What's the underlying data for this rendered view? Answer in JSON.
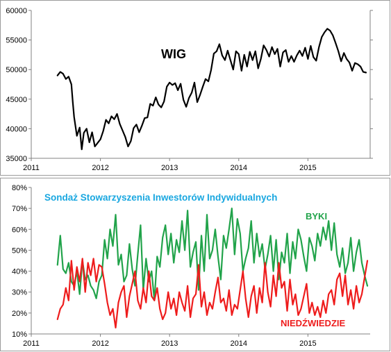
{
  "chart_data": [
    {
      "type": "line",
      "title": "WIG",
      "xlabel": "",
      "ylabel": "",
      "x_ticks": [
        "2011",
        "2012",
        "2013",
        "2014",
        "2015"
      ],
      "x_range": [
        2011.0,
        2015.9
      ],
      "y_ticks": [
        "35000",
        "40000",
        "45000",
        "50000",
        "55000",
        "60000"
      ],
      "ylim": [
        35000,
        60000
      ],
      "grid": false,
      "series": [
        {
          "color": "#000000",
          "x": [
            2011.38,
            2011.42,
            2011.46,
            2011.5,
            2011.54,
            2011.58,
            2011.6,
            2011.62,
            2011.66,
            2011.7,
            2011.73,
            2011.76,
            2011.8,
            2011.84,
            2011.88,
            2011.92,
            2011.96,
            2012.0,
            2012.04,
            2012.08,
            2012.12,
            2012.16,
            2012.2,
            2012.24,
            2012.28,
            2012.32,
            2012.36,
            2012.4,
            2012.44,
            2012.48,
            2012.52,
            2012.56,
            2012.6,
            2012.64,
            2012.68,
            2012.72,
            2012.76,
            2012.8,
            2012.84,
            2012.88,
            2012.92,
            2012.96,
            2013.0,
            2013.04,
            2013.08,
            2013.12,
            2013.16,
            2013.2,
            2013.24,
            2013.28,
            2013.32,
            2013.36,
            2013.4,
            2013.44,
            2013.48,
            2013.52,
            2013.56,
            2013.6,
            2013.64,
            2013.68,
            2013.72,
            2013.76,
            2013.8,
            2013.84,
            2013.88,
            2013.92,
            2013.96,
            2014.0,
            2014.04,
            2014.08,
            2014.12,
            2014.16,
            2014.2,
            2014.24,
            2014.28,
            2014.32,
            2014.36,
            2014.4,
            2014.44,
            2014.48,
            2014.52,
            2014.56,
            2014.6,
            2014.64,
            2014.68,
            2014.72,
            2014.76,
            2014.8,
            2014.84,
            2014.88,
            2014.92,
            2014.96,
            2015.0,
            2015.04,
            2015.08,
            2015.12,
            2015.16,
            2015.2,
            2015.24,
            2015.28,
            2015.32,
            2015.36,
            2015.4,
            2015.44,
            2015.48,
            2015.52,
            2015.56,
            2015.6,
            2015.64,
            2015.68,
            2015.72,
            2015.76,
            2015.8,
            2015.84
          ],
          "values": [
            49000,
            49600,
            49300,
            48400,
            48800,
            47500,
            44500,
            42000,
            38800,
            40200,
            36500,
            39300,
            40000,
            37700,
            39400,
            37000,
            37600,
            38200,
            39600,
            41500,
            40900,
            42100,
            41600,
            42500,
            40800,
            39700,
            38600,
            37000,
            37900,
            40100,
            40700,
            39400,
            40500,
            41800,
            41900,
            44200,
            43900,
            45300,
            44100,
            43600,
            44600,
            47100,
            47800,
            47400,
            47700,
            46500,
            47600,
            44900,
            43700,
            45200,
            46100,
            47800,
            44500,
            45700,
            47100,
            48400,
            48000,
            49900,
            52700,
            53100,
            54300,
            52400,
            51600,
            53200,
            51600,
            50000,
            53100,
            52600,
            49800,
            52500,
            50500,
            53000,
            51600,
            53100,
            50200,
            51800,
            54100,
            53300,
            52200,
            53800,
            52600,
            53500,
            50500,
            52900,
            53300,
            51300,
            52300,
            51300,
            52400,
            53200,
            52300,
            53700,
            51800,
            54000,
            52100,
            51500,
            53800,
            55500,
            56300,
            56900,
            56600,
            55800,
            54500,
            53100,
            51400,
            52800,
            51800,
            51200,
            49800,
            51100,
            50900,
            50500,
            49600,
            49500
          ]
        }
      ]
    },
    {
      "type": "line",
      "title": "Sondaż Stowarzyszenia Inwestorów Indywidualnych",
      "xlabel": "",
      "ylabel": "",
      "x_ticks": [
        "2011",
        "2012",
        "2013",
        "2014",
        "2015"
      ],
      "x_range": [
        2011.0,
        2015.9
      ],
      "y_ticks": [
        "10%",
        "20%",
        "30%",
        "40%",
        "50%",
        "60%",
        "70%",
        "80%"
      ],
      "ylim": [
        10,
        80
      ],
      "grid": false,
      "title_color": "#19a7e0",
      "series": [
        {
          "name": "BYKI",
          "color": "#21a34a",
          "x": [
            2011.38,
            2011.42,
            2011.46,
            2011.5,
            2011.54,
            2011.58,
            2011.62,
            2011.66,
            2011.7,
            2011.74,
            2011.78,
            2011.82,
            2011.86,
            2011.9,
            2011.94,
            2011.98,
            2012.02,
            2012.06,
            2012.1,
            2012.14,
            2012.18,
            2012.22,
            2012.26,
            2012.3,
            2012.34,
            2012.38,
            2012.42,
            2012.46,
            2012.5,
            2012.54,
            2012.58,
            2012.62,
            2012.66,
            2012.7,
            2012.74,
            2012.78,
            2012.82,
            2012.86,
            2012.9,
            2012.94,
            2012.98,
            2013.02,
            2013.06,
            2013.1,
            2013.14,
            2013.18,
            2013.22,
            2013.26,
            2013.3,
            2013.34,
            2013.38,
            2013.42,
            2013.46,
            2013.5,
            2013.54,
            2013.58,
            2013.62,
            2013.66,
            2013.7,
            2013.74,
            2013.78,
            2013.82,
            2013.86,
            2013.9,
            2013.94,
            2013.98,
            2014.02,
            2014.06,
            2014.1,
            2014.14,
            2014.18,
            2014.22,
            2014.26,
            2014.3,
            2014.34,
            2014.38,
            2014.42,
            2014.46,
            2014.5,
            2014.54,
            2014.58,
            2014.62,
            2014.66,
            2014.7,
            2014.74,
            2014.78,
            2014.82,
            2014.86,
            2014.9,
            2014.94,
            2014.98,
            2015.02,
            2015.06,
            2015.1,
            2015.14,
            2015.18,
            2015.22,
            2015.26,
            2015.3,
            2015.34,
            2015.38,
            2015.42,
            2015.46,
            2015.5,
            2015.54,
            2015.58,
            2015.62,
            2015.66,
            2015.7,
            2015.74,
            2015.78,
            2015.82,
            2015.86
          ],
          "values": [
            43,
            57,
            41,
            39,
            44,
            35,
            33,
            40,
            29,
            45,
            36,
            38,
            33,
            31,
            27,
            35,
            38,
            55,
            46,
            60,
            52,
            67,
            43,
            48,
            35,
            38,
            53,
            41,
            33,
            48,
            62,
            31,
            46,
            35,
            40,
            26,
            47,
            42,
            56,
            62,
            48,
            58,
            44,
            55,
            49,
            64,
            50,
            69,
            42,
            49,
            54,
            31,
            57,
            40,
            67,
            46,
            50,
            60,
            47,
            36,
            57,
            51,
            60,
            70,
            48,
            65,
            58,
            40,
            46,
            51,
            64,
            44,
            58,
            47,
            53,
            41,
            48,
            57,
            40,
            55,
            36,
            49,
            44,
            58,
            39,
            54,
            46,
            60,
            55,
            47,
            40,
            56,
            52,
            45,
            58,
            52,
            61,
            55,
            64,
            50,
            63,
            48,
            42,
            51,
            39,
            44,
            56,
            40,
            49,
            55,
            44,
            38,
            33
          ]
        },
        {
          "name": "NIEDŹWIEDZIE",
          "color": "#ee1c1c",
          "x": [
            2011.38,
            2011.42,
            2011.46,
            2011.5,
            2011.54,
            2011.58,
            2011.62,
            2011.66,
            2011.7,
            2011.74,
            2011.78,
            2011.82,
            2011.86,
            2011.9,
            2011.94,
            2011.98,
            2012.02,
            2012.06,
            2012.1,
            2012.14,
            2012.18,
            2012.22,
            2012.26,
            2012.3,
            2012.34,
            2012.38,
            2012.42,
            2012.46,
            2012.5,
            2012.54,
            2012.58,
            2012.62,
            2012.66,
            2012.7,
            2012.74,
            2012.78,
            2012.82,
            2012.86,
            2012.9,
            2012.94,
            2012.98,
            2013.02,
            2013.06,
            2013.1,
            2013.14,
            2013.18,
            2013.22,
            2013.26,
            2013.3,
            2013.34,
            2013.38,
            2013.42,
            2013.46,
            2013.5,
            2013.54,
            2013.58,
            2013.62,
            2013.66,
            2013.7,
            2013.74,
            2013.78,
            2013.82,
            2013.86,
            2013.9,
            2013.94,
            2013.98,
            2014.02,
            2014.06,
            2014.1,
            2014.14,
            2014.18,
            2014.22,
            2014.26,
            2014.3,
            2014.34,
            2014.38,
            2014.42,
            2014.46,
            2014.5,
            2014.54,
            2014.58,
            2014.62,
            2014.66,
            2014.7,
            2014.74,
            2014.78,
            2014.82,
            2014.86,
            2014.9,
            2014.94,
            2014.98,
            2015.02,
            2015.06,
            2015.1,
            2015.14,
            2015.18,
            2015.22,
            2015.26,
            2015.3,
            2015.34,
            2015.38,
            2015.42,
            2015.46,
            2015.5,
            2015.54,
            2015.58,
            2015.62,
            2015.66,
            2015.7,
            2015.74,
            2015.78,
            2015.82,
            2015.86
          ],
          "values": [
            17,
            22,
            24,
            32,
            26,
            45,
            31,
            42,
            35,
            46,
            30,
            44,
            38,
            46,
            35,
            43,
            42,
            34,
            25,
            19,
            22,
            13,
            25,
            30,
            33,
            18,
            28,
            34,
            40,
            26,
            22,
            32,
            25,
            40,
            28,
            26,
            32,
            22,
            17,
            20,
            30,
            22,
            27,
            19,
            30,
            25,
            21,
            33,
            18,
            27,
            29,
            43,
            23,
            30,
            19,
            25,
            22,
            30,
            37,
            25,
            27,
            21,
            31,
            19,
            24,
            22,
            31,
            40,
            27,
            18,
            28,
            33,
            20,
            32,
            25,
            44,
            30,
            23,
            38,
            28,
            44,
            32,
            35,
            21,
            36,
            24,
            29,
            19,
            22,
            28,
            34,
            20,
            25,
            19,
            23,
            18,
            26,
            20,
            29,
            31,
            24,
            36,
            39,
            28,
            38,
            24,
            31,
            22,
            33,
            25,
            29,
            37,
            45
          ]
        }
      ]
    }
  ]
}
